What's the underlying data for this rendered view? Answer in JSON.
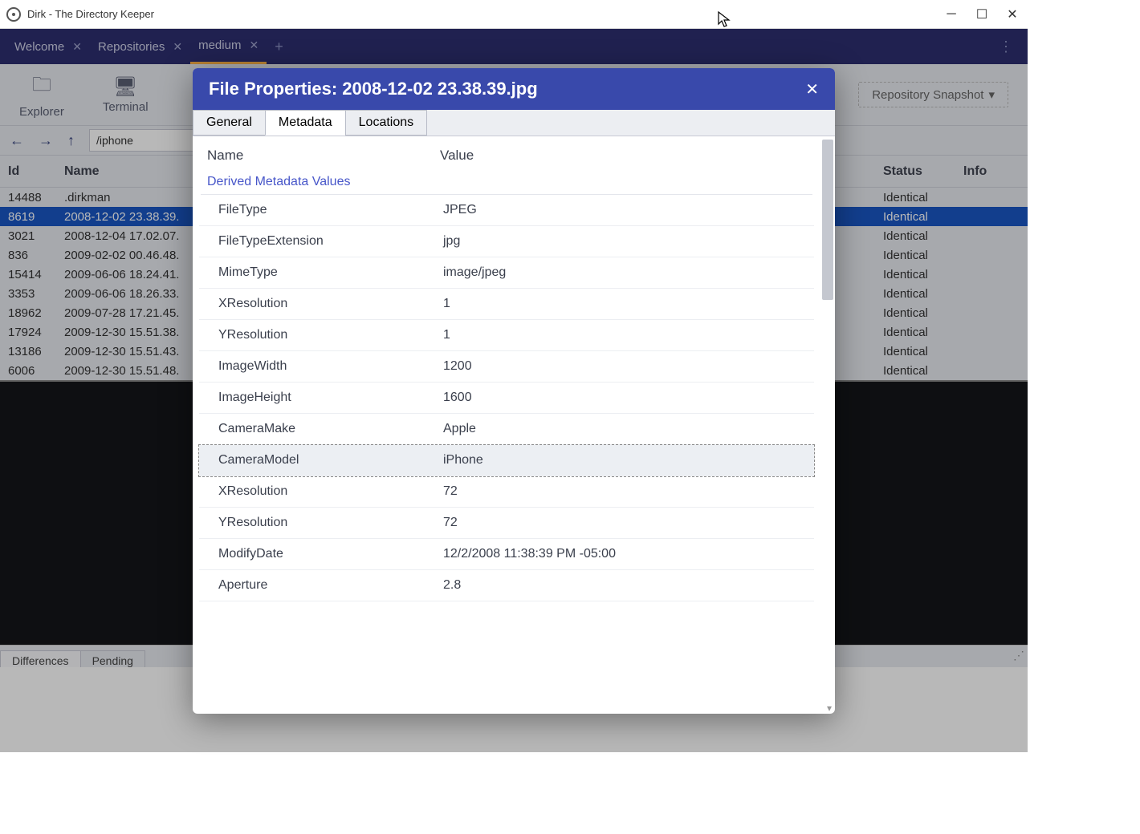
{
  "window": {
    "title": "Dirk - The Directory Keeper"
  },
  "tabs": [
    {
      "label": "Welcome"
    },
    {
      "label": "Repositories"
    },
    {
      "label": "medium",
      "active": true
    }
  ],
  "toolbar": {
    "explorer": "Explorer",
    "terminal": "Terminal",
    "snapshot": "Repository Snapshot"
  },
  "nav": {
    "path": "/iphone"
  },
  "table": {
    "headers": {
      "id": "Id",
      "name": "Name",
      "status": "Status",
      "info": "Info"
    },
    "rows": [
      {
        "id": "14488",
        "name": ".dirkman",
        "status": "Identical"
      },
      {
        "id": "8619",
        "name": "2008-12-02 23.38.39.",
        "status": "Identical",
        "selected": true
      },
      {
        "id": "3021",
        "name": "2008-12-04 17.02.07.",
        "status": "Identical"
      },
      {
        "id": "836",
        "name": "2009-02-02 00.46.48.",
        "status": "Identical"
      },
      {
        "id": "15414",
        "name": "2009-06-06 18.24.41.",
        "status": "Identical"
      },
      {
        "id": "3353",
        "name": "2009-06-06 18.26.33.",
        "status": "Identical"
      },
      {
        "id": "18962",
        "name": "2009-07-28 17.21.45.",
        "status": "Identical"
      },
      {
        "id": "17924",
        "name": "2009-12-30 15.51.38.",
        "status": "Identical"
      },
      {
        "id": "13186",
        "name": "2009-12-30 15.51.43.",
        "status": "Identical"
      },
      {
        "id": "6006",
        "name": "2009-12-30 15.51.48.",
        "status": "Identical"
      }
    ]
  },
  "bottom": {
    "differences": "Differences",
    "pending": "Pending"
  },
  "modal": {
    "title": "File Properties: 2008-12-02 23.38.39.jpg",
    "tabs": {
      "general": "General",
      "metadata": "Metadata",
      "locations": "Locations"
    },
    "header": {
      "name": "Name",
      "value": "Value"
    },
    "section": "Derived Metadata Values",
    "rows": [
      {
        "name": "FileType",
        "value": "JPEG"
      },
      {
        "name": "FileTypeExtension",
        "value": "jpg"
      },
      {
        "name": "MimeType",
        "value": "image/jpeg"
      },
      {
        "name": "XResolution",
        "value": "1"
      },
      {
        "name": "YResolution",
        "value": "1"
      },
      {
        "name": "ImageWidth",
        "value": "1200"
      },
      {
        "name": "ImageHeight",
        "value": "1600"
      },
      {
        "name": "CameraMake",
        "value": "Apple"
      },
      {
        "name": "CameraModel",
        "value": "iPhone",
        "selected": true
      },
      {
        "name": "XResolution",
        "value": "72"
      },
      {
        "name": "YResolution",
        "value": "72"
      },
      {
        "name": "ModifyDate",
        "value": "12/2/2008 11:38:39 PM -05:00"
      },
      {
        "name": "Aperture",
        "value": "2.8"
      }
    ]
  }
}
